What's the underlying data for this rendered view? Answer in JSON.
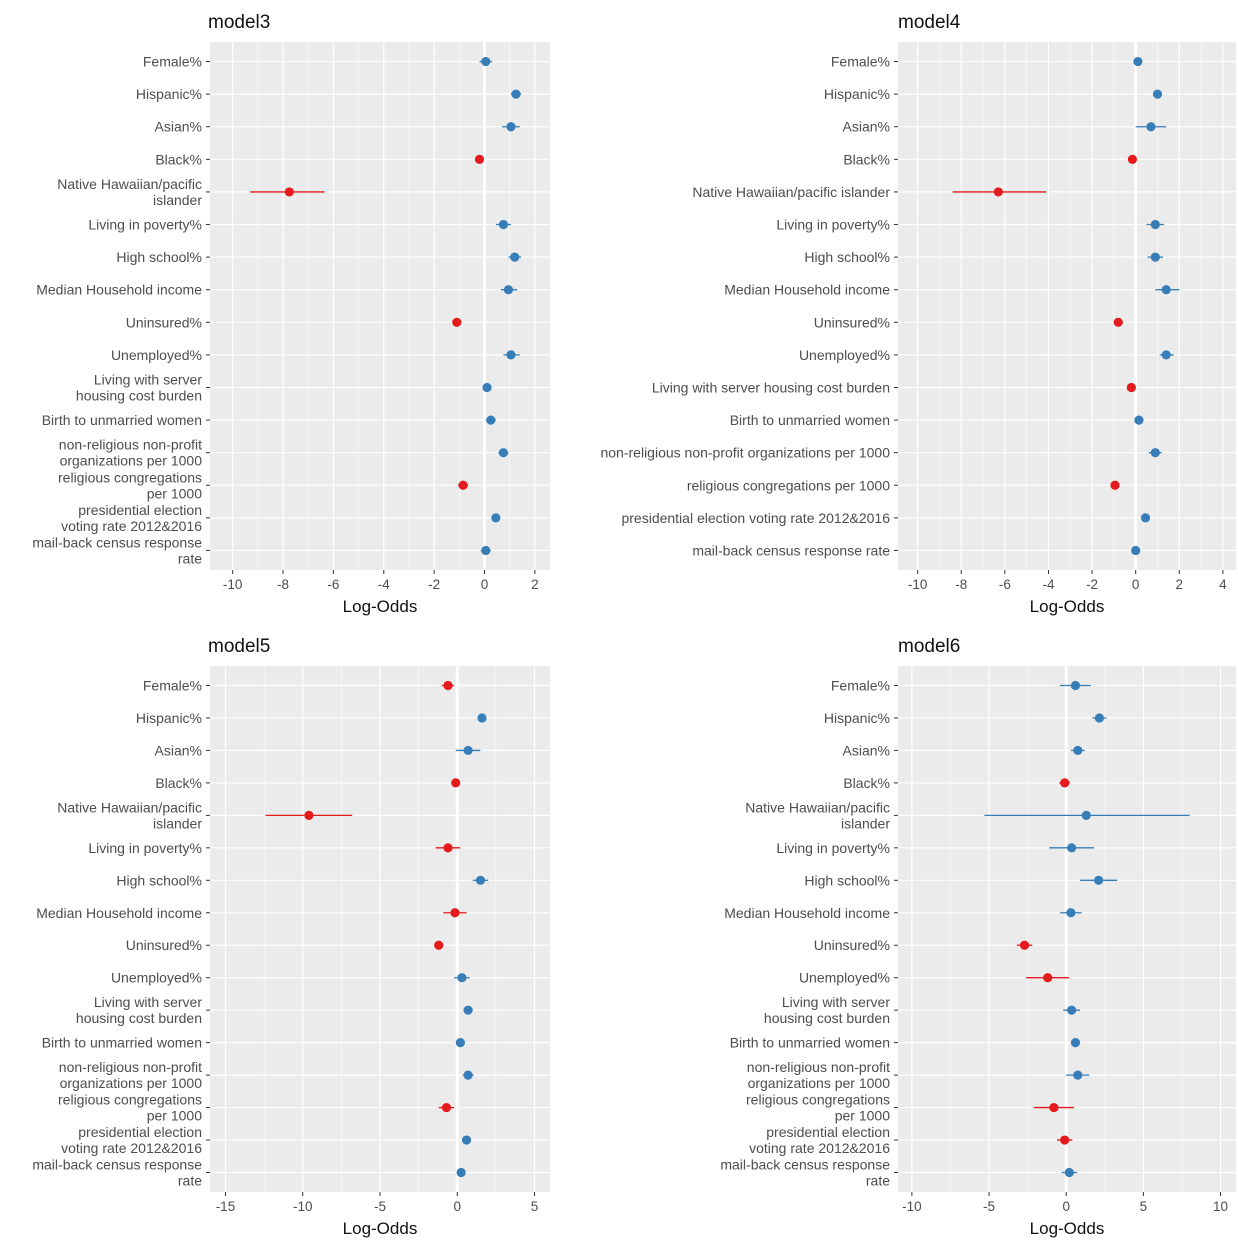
{
  "colors": {
    "negative": "#e41a1c",
    "positive": "#377eb8",
    "panel_bg": "#ebebeb",
    "grid": "#ffffff",
    "zero_line": "#ffffff"
  },
  "chart_data": [
    {
      "type": "scatter",
      "subtype": "coefficient-plot",
      "title": "model3",
      "xlabel": "Log-Odds",
      "xlim": [
        -10.9,
        2.6
      ],
      "xticks": [
        -10,
        -8,
        -6,
        -4,
        -2,
        0,
        2
      ],
      "grid": true,
      "categories": [
        [
          "Female%"
        ],
        [
          "Hispanic%"
        ],
        [
          "Asian%"
        ],
        [
          "Black%"
        ],
        [
          "Native Hawaiian/pacific",
          "islander"
        ],
        [
          "Living in poverty%"
        ],
        [
          "High school%"
        ],
        [
          "Median Household income"
        ],
        [
          "Uninsured%"
        ],
        [
          "Unemployed%"
        ],
        [
          "Living with server",
          "housing cost burden"
        ],
        [
          "Birth to unmarried women"
        ],
        [
          "non-religious non-profit",
          "organizations per 1000"
        ],
        [
          "religious congregations",
          "per 1000"
        ],
        [
          "presidential election",
          "voting rate 2012&2016"
        ],
        [
          "mail-back census response",
          "rate"
        ]
      ],
      "estimates": [
        0.05,
        1.25,
        1.05,
        -0.2,
        -7.75,
        0.75,
        1.2,
        0.95,
        -1.1,
        1.05,
        0.1,
        0.25,
        0.75,
        -0.85,
        0.45,
        0.05
      ],
      "lower": [
        -0.2,
        1.05,
        0.7,
        -0.35,
        -9.3,
        0.45,
        0.95,
        0.65,
        -1.25,
        0.75,
        -0.05,
        0.05,
        0.55,
        -1.05,
        0.3,
        -0.15
      ],
      "upper": [
        0.3,
        1.45,
        1.4,
        -0.05,
        -6.35,
        1.05,
        1.45,
        1.3,
        -0.95,
        1.4,
        0.25,
        0.45,
        0.95,
        -0.65,
        0.6,
        0.25
      ]
    },
    {
      "type": "scatter",
      "subtype": "coefficient-plot",
      "title": "model4",
      "xlabel": "Log-Odds",
      "xlim": [
        -10.9,
        4.6
      ],
      "xticks": [
        -10,
        -8,
        -6,
        -4,
        -2,
        0,
        2,
        4
      ],
      "grid": true,
      "categories": [
        [
          "Female%"
        ],
        [
          "Hispanic%"
        ],
        [
          "Asian%"
        ],
        [
          "Black%"
        ],
        [
          "Native Hawaiian/pacific islander"
        ],
        [
          "Living in poverty%"
        ],
        [
          "High school%"
        ],
        [
          "Median Household income"
        ],
        [
          "Uninsured%"
        ],
        [
          "Unemployed%"
        ],
        [
          "Living with server housing cost burden"
        ],
        [
          "Birth to unmarried women"
        ],
        [
          "non-religious non-profit organizations per 1000"
        ],
        [
          "religious congregations per 1000"
        ],
        [
          "presidential election voting rate 2012&2016"
        ],
        [
          "mail-back census response rate"
        ]
      ],
      "estimates": [
        0.1,
        1.0,
        0.7,
        -0.15,
        -6.3,
        0.9,
        0.9,
        1.4,
        -0.8,
        1.4,
        -0.2,
        0.15,
        0.9,
        -0.95,
        0.45,
        0.0
      ],
      "lower": [
        -0.1,
        0.85,
        0.0,
        -0.35,
        -8.4,
        0.5,
        0.55,
        0.9,
        -1.0,
        1.1,
        -0.4,
        -0.05,
        0.6,
        -1.15,
        0.25,
        -0.2
      ],
      "upper": [
        0.3,
        1.15,
        1.4,
        0.05,
        -4.1,
        1.3,
        1.25,
        2.0,
        -0.6,
        1.75,
        0.0,
        0.35,
        1.2,
        -0.75,
        0.65,
        0.2
      ]
    },
    {
      "type": "scatter",
      "subtype": "coefficient-plot",
      "title": "model5",
      "xlabel": "Log-Odds",
      "xlim": [
        -16.0,
        6.0
      ],
      "xticks": [
        -15,
        -10,
        -5,
        0,
        5
      ],
      "grid": true,
      "categories": [
        [
          "Female%"
        ],
        [
          "Hispanic%"
        ],
        [
          "Asian%"
        ],
        [
          "Black%"
        ],
        [
          "Native Hawaiian/pacific",
          "islander"
        ],
        [
          "Living in poverty%"
        ],
        [
          "High school%"
        ],
        [
          "Median Household income"
        ],
        [
          "Uninsured%"
        ],
        [
          "Unemployed%"
        ],
        [
          "Living with server",
          "housing cost burden"
        ],
        [
          "Birth to unmarried women"
        ],
        [
          "non-religious non-profit",
          "organizations per 1000"
        ],
        [
          "religious congregations",
          "per 1000"
        ],
        [
          "presidential election",
          "voting rate 2012&2016"
        ],
        [
          "mail-back census response",
          "rate"
        ]
      ],
      "estimates": [
        -0.6,
        1.6,
        0.7,
        -0.1,
        -9.6,
        -0.6,
        1.5,
        -0.15,
        -1.2,
        0.3,
        0.7,
        0.2,
        0.7,
        -0.7,
        0.6,
        0.25
      ],
      "lower": [
        -1.0,
        1.35,
        -0.1,
        -0.3,
        -12.4,
        -1.4,
        1.0,
        -0.9,
        -1.5,
        -0.2,
        0.4,
        -0.05,
        0.35,
        -1.2,
        0.35,
        0.0
      ],
      "upper": [
        -0.2,
        1.85,
        1.5,
        0.1,
        -6.8,
        0.2,
        2.0,
        0.6,
        -0.9,
        0.8,
        1.0,
        0.45,
        1.05,
        -0.2,
        0.85,
        0.5
      ]
    },
    {
      "type": "scatter",
      "subtype": "coefficient-plot",
      "title": "model6",
      "xlabel": "Log-Odds",
      "xlim": [
        -10.9,
        11.0
      ],
      "xticks": [
        -10,
        -5,
        0,
        5,
        10
      ],
      "grid": true,
      "categories": [
        [
          "Female%"
        ],
        [
          "Hispanic%"
        ],
        [
          "Asian%"
        ],
        [
          "Black%"
        ],
        [
          "Native Hawaiian/pacific",
          "islander"
        ],
        [
          "Living in poverty%"
        ],
        [
          "High school%"
        ],
        [
          "Median Household income"
        ],
        [
          "Uninsured%"
        ],
        [
          "Unemployed%"
        ],
        [
          "Living with server",
          "housing cost burden"
        ],
        [
          "Birth to unmarried women"
        ],
        [
          "non-religious non-profit",
          "organizations per 1000"
        ],
        [
          "religious congregations",
          "per 1000"
        ],
        [
          "presidential election",
          "voting rate 2012&2016"
        ],
        [
          "mail-back census response",
          "rate"
        ]
      ],
      "estimates": [
        0.6,
        2.15,
        0.75,
        -0.1,
        1.3,
        0.35,
        2.1,
        0.3,
        -2.7,
        -1.2,
        0.35,
        0.6,
        0.75,
        -0.8,
        -0.1,
        0.2
      ],
      "lower": [
        -0.4,
        1.7,
        0.3,
        -0.45,
        -5.3,
        -1.1,
        0.9,
        -0.4,
        -3.2,
        -2.6,
        -0.2,
        0.3,
        0.0,
        -2.1,
        -0.6,
        -0.3
      ],
      "upper": [
        1.6,
        2.6,
        1.2,
        0.25,
        8.0,
        1.8,
        3.3,
        1.0,
        -2.2,
        0.2,
        0.9,
        0.9,
        1.5,
        0.5,
        0.4,
        0.7
      ]
    }
  ]
}
